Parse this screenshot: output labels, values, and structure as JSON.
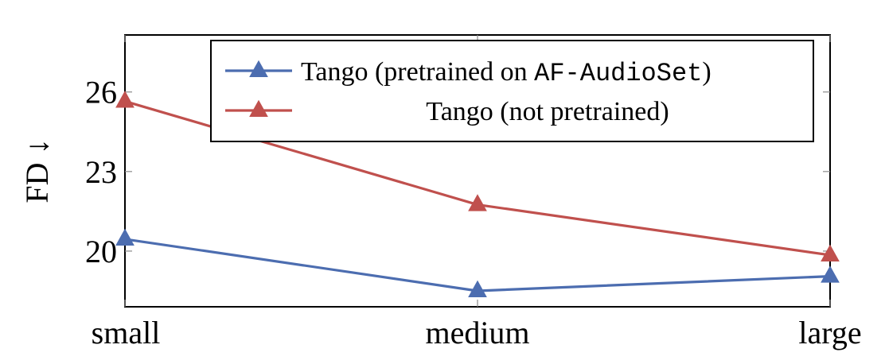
{
  "chart_data": {
    "type": "line",
    "categories": [
      "small",
      "medium",
      "large"
    ],
    "series": [
      {
        "name": "Tango (pretrained on AF-AudioSet)",
        "name_parts": [
          "Tango (pretrained on ",
          "AF-AudioSet",
          ")"
        ],
        "values": [
          20.45,
          18.5,
          19.05
        ],
        "color": "#4c6db0",
        "marker": "triangle"
      },
      {
        "name": "Tango (not pretrained)",
        "values": [
          25.65,
          21.75,
          19.85
        ],
        "color": "#c0504d",
        "marker": "triangle"
      }
    ],
    "ylabel": "FD ↓",
    "yticks": [
      20,
      23,
      26
    ],
    "ylim": [
      17.9,
      28.15
    ],
    "grid": false,
    "legend_position": "top-right"
  }
}
